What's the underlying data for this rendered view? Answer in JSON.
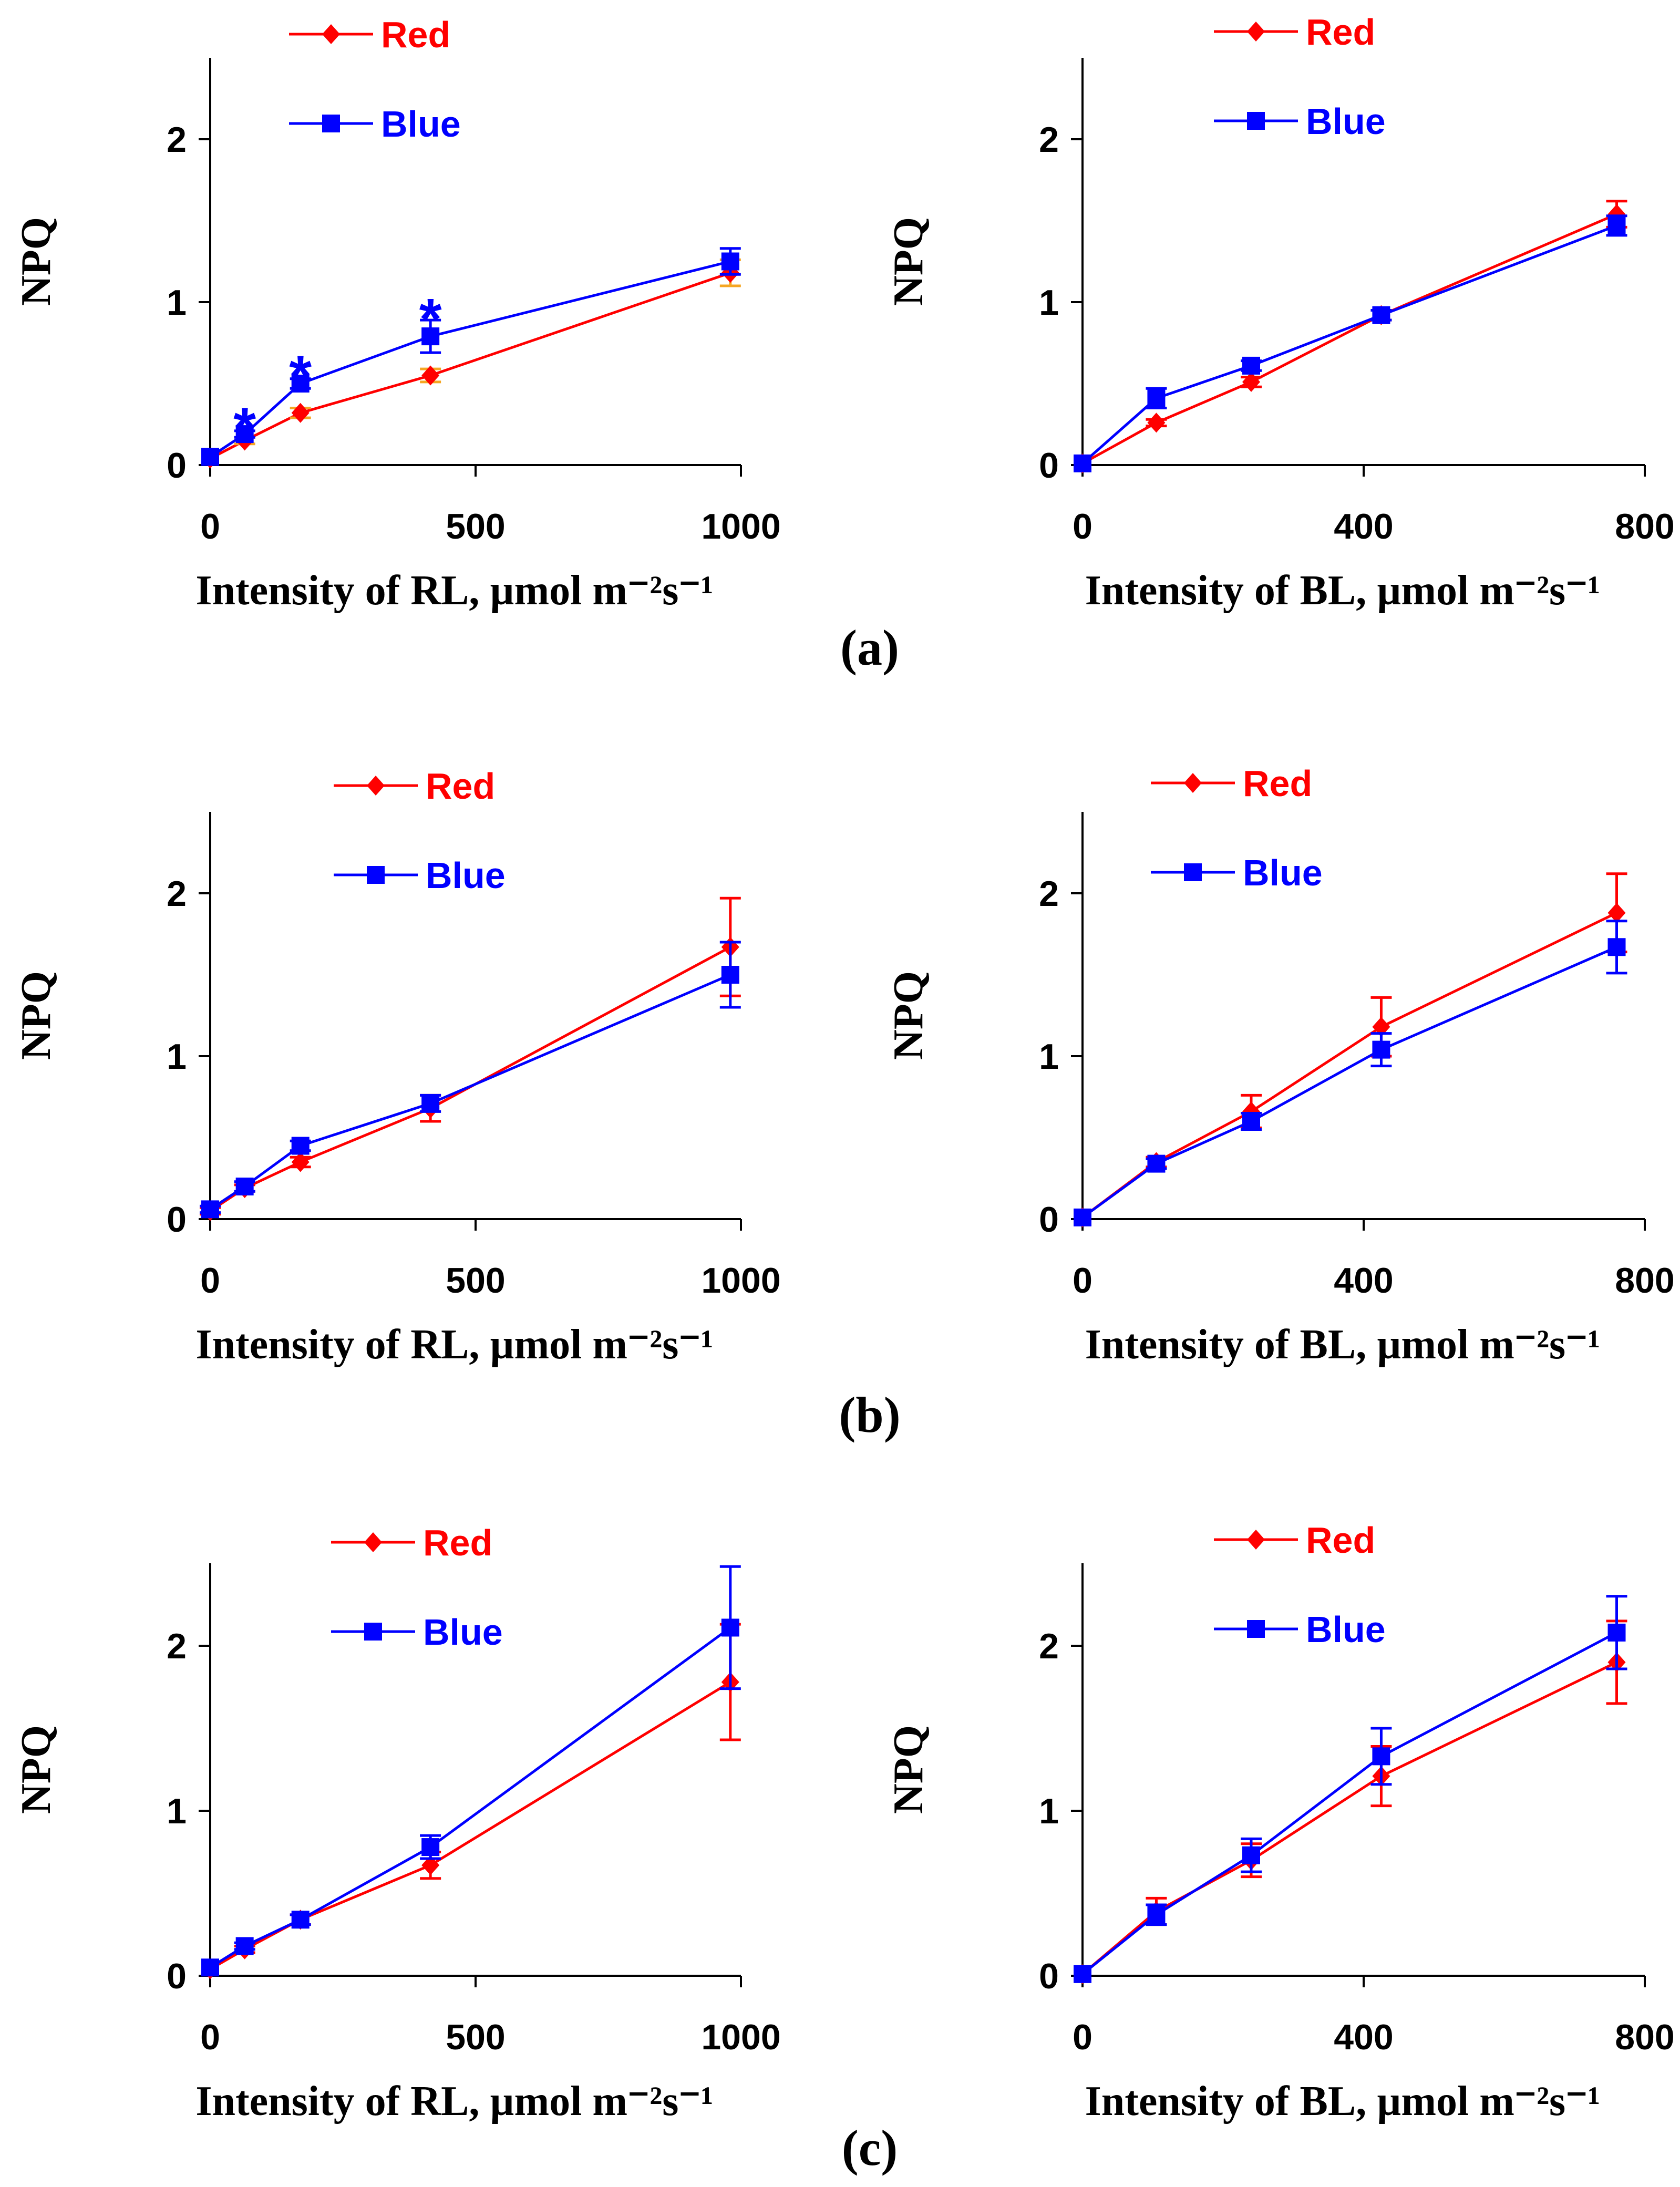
{
  "panel_labels": [
    "(a)",
    "(b)",
    "(c)"
  ],
  "colors": {
    "red": "#ff0000",
    "blue": "#0000ff",
    "red_err_a": "#f5a623"
  },
  "chart_data": [
    {
      "id": "a-left",
      "type": "line",
      "panel": "(a)",
      "xlabel": "Intensity of RL, µmol m⁻²s⁻¹",
      "ylabel": "NPQ",
      "xlim": [
        0,
        1000
      ],
      "ylim": [
        0,
        2.5
      ],
      "xticks": [
        "0",
        "500",
        "1000"
      ],
      "xtick_values": [
        0,
        500,
        1000
      ],
      "yticks": [
        "0",
        "1",
        "2"
      ],
      "ytick_values": [
        0,
        1,
        2
      ],
      "x": [
        0,
        65,
        170,
        415,
        980
      ],
      "series": [
        {
          "name": "Red",
          "color": "#ff0000",
          "marker": "diamond",
          "values": [
            0.04,
            0.15,
            0.32,
            0.55,
            1.18
          ],
          "errors": [
            0.01,
            0.02,
            0.03,
            0.04,
            0.08
          ]
        },
        {
          "name": "Blue",
          "color": "#0000ff",
          "marker": "square",
          "values": [
            0.05,
            0.19,
            0.5,
            0.79,
            1.25
          ],
          "errors": [
            0.01,
            0.02,
            0.03,
            0.1,
            0.08
          ]
        }
      ],
      "annotations": [
        {
          "text": "*",
          "x": 65,
          "y": 0.25
        },
        {
          "text": "*",
          "x": 170,
          "y": 0.57
        },
        {
          "text": "*",
          "x": 415,
          "y": 0.92
        }
      ]
    },
    {
      "id": "a-right",
      "type": "line",
      "panel": "(a)",
      "xlabel": "Intensity of BL, µmol m⁻²s⁻¹",
      "ylabel": "NPQ",
      "xlim": [
        0,
        800
      ],
      "ylim": [
        0,
        2.5
      ],
      "xticks": [
        "0",
        "400",
        "800"
      ],
      "xtick_values": [
        0,
        400,
        800
      ],
      "yticks": [
        "0",
        "1",
        "2"
      ],
      "ytick_values": [
        0,
        1,
        2
      ],
      "x": [
        0,
        105,
        240,
        425,
        760
      ],
      "series": [
        {
          "name": "Red",
          "color": "#ff0000",
          "marker": "diamond",
          "values": [
            0.01,
            0.26,
            0.51,
            0.92,
            1.54
          ],
          "errors": [
            0.01,
            0.02,
            0.03,
            0.03,
            0.08
          ]
        },
        {
          "name": "Blue",
          "color": "#0000ff",
          "marker": "square",
          "values": [
            0.01,
            0.41,
            0.61,
            0.92,
            1.47
          ],
          "errors": [
            0.01,
            0.06,
            0.03,
            0.03,
            0.06
          ]
        }
      ]
    },
    {
      "id": "b-left",
      "type": "line",
      "panel": "(b)",
      "xlabel": "Intensity of RL, µmol m⁻²s⁻¹",
      "ylabel": "NPQ",
      "xlim": [
        0,
        1000
      ],
      "ylim": [
        0,
        2.5
      ],
      "xticks": [
        "0",
        "500",
        "1000"
      ],
      "xtick_values": [
        0,
        500,
        1000
      ],
      "yticks": [
        "0",
        "1",
        "2"
      ],
      "ytick_values": [
        0,
        1,
        2
      ],
      "x": [
        0,
        65,
        170,
        415,
        980
      ],
      "series": [
        {
          "name": "Red",
          "color": "#ff0000",
          "marker": "diamond",
          "values": [
            0.05,
            0.19,
            0.35,
            0.68,
            1.67
          ],
          "errors": [
            0.02,
            0.02,
            0.03,
            0.08,
            0.3
          ]
        },
        {
          "name": "Blue",
          "color": "#0000ff",
          "marker": "square",
          "values": [
            0.06,
            0.2,
            0.45,
            0.71,
            1.5
          ],
          "errors": [
            0.02,
            0.03,
            0.03,
            0.05,
            0.2
          ]
        }
      ]
    },
    {
      "id": "b-right",
      "type": "line",
      "panel": "(b)",
      "xlabel": "Intensity of BL, µmol m⁻²s⁻¹",
      "ylabel": "NPQ",
      "xlim": [
        0,
        800
      ],
      "ylim": [
        0,
        2.5
      ],
      "xticks": [
        "0",
        "400",
        "800"
      ],
      "xtick_values": [
        0,
        400,
        800
      ],
      "yticks": [
        "0",
        "1",
        "2"
      ],
      "ytick_values": [
        0,
        1,
        2
      ],
      "x": [
        0,
        105,
        240,
        425,
        760
      ],
      "series": [
        {
          "name": "Red",
          "color": "#ff0000",
          "marker": "diamond",
          "values": [
            0.01,
            0.35,
            0.66,
            1.18,
            1.88
          ],
          "errors": [
            0.01,
            0.03,
            0.1,
            0.18,
            0.24
          ]
        },
        {
          "name": "Blue",
          "color": "#0000ff",
          "marker": "square",
          "values": [
            0.01,
            0.34,
            0.6,
            1.04,
            1.67
          ],
          "errors": [
            0.01,
            0.03,
            0.05,
            0.1,
            0.16
          ]
        }
      ]
    },
    {
      "id": "c-left",
      "type": "line",
      "panel": "(c)",
      "xlabel": "Intensity of RL, µmol m⁻²s⁻¹",
      "ylabel": "NPQ",
      "xlim": [
        0,
        1000
      ],
      "ylim": [
        0,
        2.5
      ],
      "xticks": [
        "0",
        "500",
        "1000"
      ],
      "xtick_values": [
        0,
        500,
        1000
      ],
      "yticks": [
        "0",
        "1",
        "2"
      ],
      "ytick_values": [
        0,
        1,
        2
      ],
      "x": [
        0,
        65,
        170,
        415,
        980
      ],
      "series": [
        {
          "name": "Red",
          "color": "#ff0000",
          "marker": "diamond",
          "values": [
            0.04,
            0.16,
            0.34,
            0.67,
            1.78
          ],
          "errors": [
            0.01,
            0.02,
            0.03,
            0.08,
            0.35
          ]
        },
        {
          "name": "Blue",
          "color": "#0000ff",
          "marker": "square",
          "values": [
            0.05,
            0.18,
            0.34,
            0.78,
            2.11
          ],
          "errors": [
            0.01,
            0.02,
            0.03,
            0.07,
            0.37
          ]
        }
      ]
    },
    {
      "id": "c-right",
      "type": "line",
      "panel": "(c)",
      "xlabel": "Intensity of BL, µmol m⁻²s⁻¹",
      "ylabel": "NPQ",
      "xlim": [
        0,
        800
      ],
      "ylim": [
        0,
        2.5
      ],
      "xticks": [
        "0",
        "400",
        "800"
      ],
      "xtick_values": [
        0,
        400,
        800
      ],
      "yticks": [
        "0",
        "1",
        "2"
      ],
      "ytick_values": [
        0,
        1,
        2
      ],
      "x": [
        0,
        105,
        240,
        425,
        760
      ],
      "series": [
        {
          "name": "Red",
          "color": "#ff0000",
          "marker": "diamond",
          "values": [
            0.01,
            0.39,
            0.7,
            1.21,
            1.9
          ],
          "errors": [
            0.01,
            0.08,
            0.1,
            0.18,
            0.25
          ]
        },
        {
          "name": "Blue",
          "color": "#0000ff",
          "marker": "square",
          "values": [
            0.01,
            0.37,
            0.73,
            1.33,
            2.08
          ],
          "errors": [
            0.01,
            0.06,
            0.1,
            0.17,
            0.22
          ]
        }
      ]
    }
  ]
}
